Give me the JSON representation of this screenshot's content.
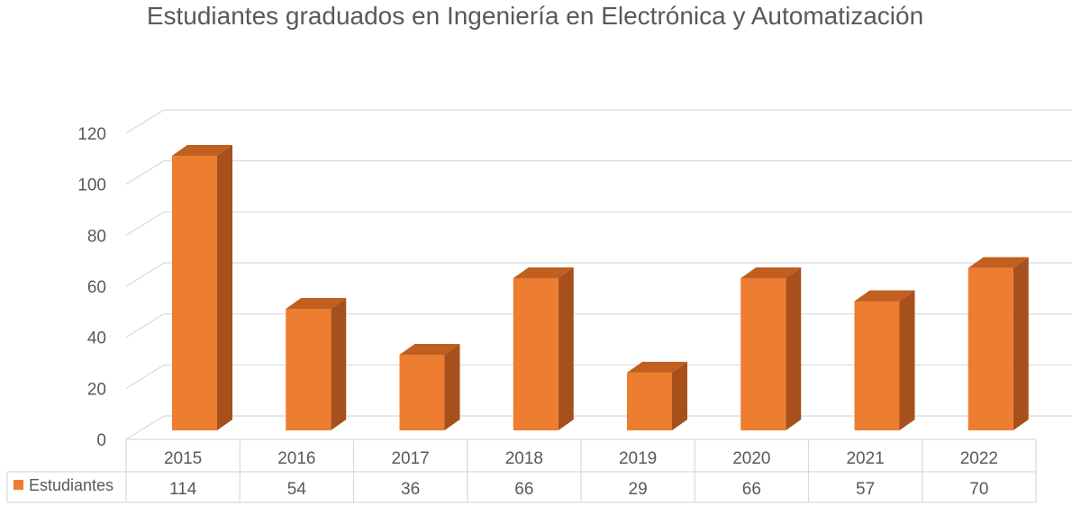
{
  "chart_data": {
    "type": "bar",
    "title": "Estudiantes graduados en Ingeniería en Electrónica y Automatización",
    "categories": [
      "2015",
      "2016",
      "2017",
      "2018",
      "2019",
      "2020",
      "2021",
      "2022"
    ],
    "series": [
      {
        "name": "Estudiantes",
        "values": [
          114,
          54,
          36,
          66,
          29,
          66,
          57,
          70
        ]
      }
    ],
    "ylim": [
      0,
      120
    ],
    "yticks": [
      0,
      20,
      40,
      60,
      80,
      100,
      120
    ],
    "grid": true,
    "style": "3d-column",
    "data_table": true,
    "legend_placement": "data-table-left"
  },
  "colors": {
    "bar_front": "#ED7D31",
    "bar_side": "#A8501B",
    "bar_top": "#C05F1F",
    "grid": "#D9D9D9",
    "text": "#595959"
  }
}
